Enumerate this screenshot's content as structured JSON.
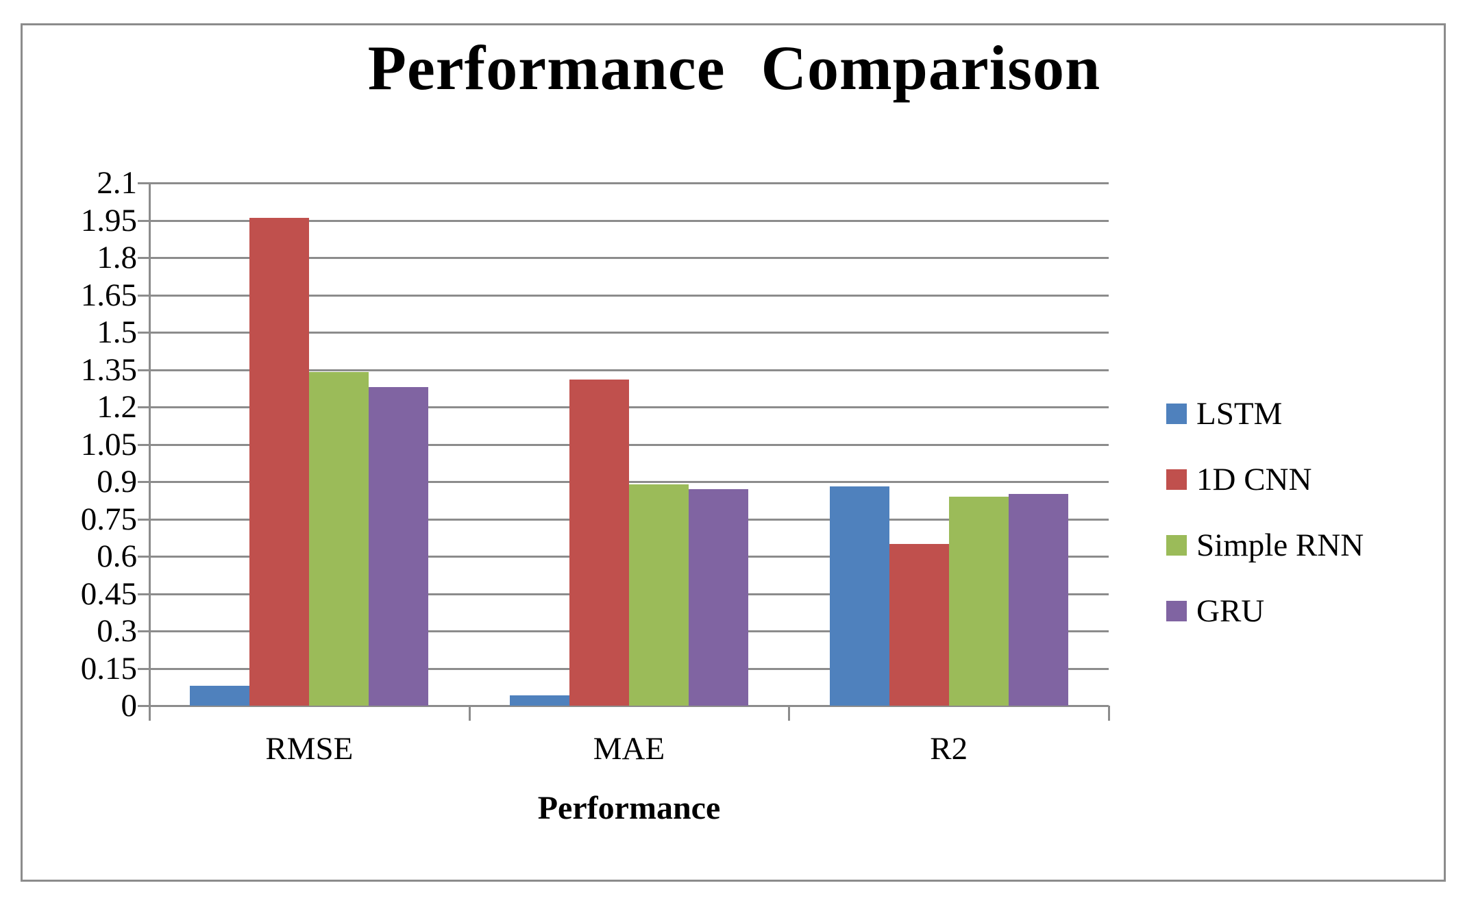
{
  "chart_data": {
    "type": "bar",
    "title": "Performance Comparison",
    "xlabel": "Performance",
    "ylabel": "",
    "categories": [
      "RMSE",
      "MAE",
      "R2"
    ],
    "series": [
      {
        "name": "LSTM",
        "color": "#4F81BD",
        "values": [
          0.08,
          0.04,
          0.88
        ]
      },
      {
        "name": "1D CNN",
        "color": "#C0504D",
        "values": [
          1.96,
          1.31,
          0.65
        ]
      },
      {
        "name": "Simple RNN",
        "color": "#9BBB59",
        "values": [
          1.34,
          0.89,
          0.84
        ]
      },
      {
        "name": "GRU",
        "color": "#8064A2",
        "values": [
          1.28,
          0.87,
          0.85
        ]
      }
    ],
    "ylim": [
      0,
      2.1
    ],
    "ytick_step": 0.15,
    "ytick_labels": [
      "0",
      "0.15",
      "0.3",
      "0.45",
      "0.6",
      "0.75",
      "0.9",
      "1.05",
      "1.2",
      "1.35",
      "1.5",
      "1.65",
      "1.8",
      "1.95",
      "2.1"
    ],
    "grid": true,
    "legend_position": "right"
  },
  "colors": {
    "background": "#FFFFFF",
    "frame_border": "#8C8C8C",
    "gridline": "#8C8C8C",
    "axis": "#8C8C8C",
    "text": "#000000"
  }
}
